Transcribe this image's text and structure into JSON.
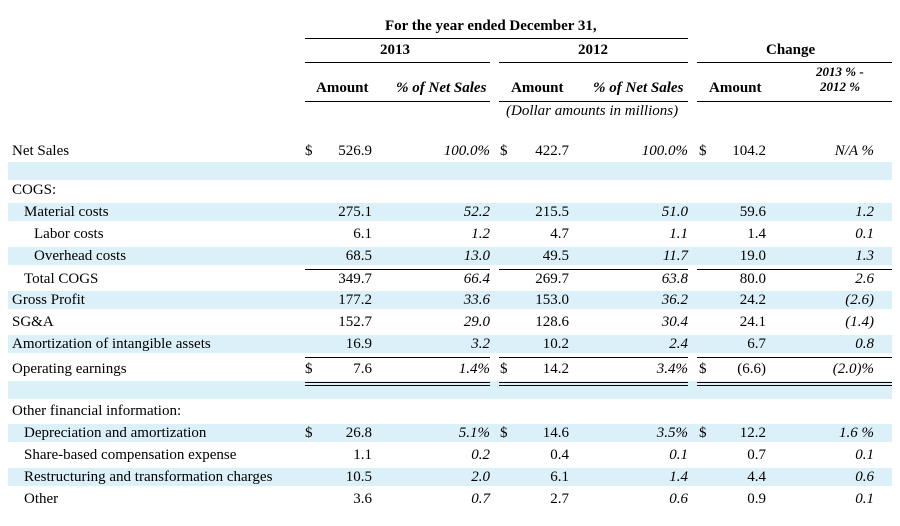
{
  "header": {
    "period_title": "For the year ended December 31,",
    "year_a": "2013",
    "year_b": "2012",
    "change": "Change",
    "amount": "Amount",
    "pct_net_sales": "% of Net Sales",
    "change_pct_line1": "2013 % -",
    "change_pct_line2": "2012 %",
    "units_note": "(Dollar amounts in millions)"
  },
  "dollar_sign": "$",
  "rows": [
    {
      "label": "Net Sales",
      "a_dollar": "$",
      "a_amt": "526.9",
      "a_pct": "100.0%",
      "b_dollar": "$",
      "b_amt": "422.7",
      "b_pct": "100.0%",
      "c_dollar": "$",
      "c_amt": "104.2",
      "c_pct": "N/A %"
    },
    {
      "label": "COGS:"
    },
    {
      "label": "Material costs",
      "a_amt": "275.1",
      "a_pct": "52.2",
      "b_amt": "215.5",
      "b_pct": "51.0",
      "c_amt": "59.6",
      "c_pct": "1.2"
    },
    {
      "label": "Labor costs",
      "a_amt": "6.1",
      "a_pct": "1.2",
      "b_amt": "4.7",
      "b_pct": "1.1",
      "c_amt": "1.4",
      "c_pct": "0.1"
    },
    {
      "label": "Overhead costs",
      "a_amt": "68.5",
      "a_pct": "13.0",
      "b_amt": "49.5",
      "b_pct": "11.7",
      "c_amt": "19.0",
      "c_pct": "1.3"
    },
    {
      "label": "Total COGS",
      "a_amt": "349.7",
      "a_pct": "66.4",
      "b_amt": "269.7",
      "b_pct": "63.8",
      "c_amt": "80.0",
      "c_pct": "2.6"
    },
    {
      "label": "Gross Profit",
      "a_amt": "177.2",
      "a_pct": "33.6",
      "b_amt": "153.0",
      "b_pct": "36.2",
      "c_amt": "24.2",
      "c_pct": "(2.6)"
    },
    {
      "label": "SG&A",
      "a_amt": "152.7",
      "a_pct": "29.0",
      "b_amt": "128.6",
      "b_pct": "30.4",
      "c_amt": "24.1",
      "c_pct": "(1.4)"
    },
    {
      "label": "Amortization of intangible assets",
      "a_amt": "16.9",
      "a_pct": "3.2",
      "b_amt": "10.2",
      "b_pct": "2.4",
      "c_amt": "6.7",
      "c_pct": "0.8"
    },
    {
      "label": "Operating earnings",
      "a_dollar": "$",
      "a_amt": "7.6",
      "a_pct": "1.4%",
      "b_dollar": "$",
      "b_amt": "14.2",
      "b_pct": "3.4%",
      "c_dollar": "$",
      "c_amt": "(6.6)",
      "c_pct": "(2.0)%"
    },
    {
      "label": "Other financial information:"
    },
    {
      "label": "Depreciation and amortization",
      "a_dollar": "$",
      "a_amt": "26.8",
      "a_pct": "5.1%",
      "b_dollar": "$",
      "b_amt": "14.6",
      "b_pct": "3.5%",
      "c_dollar": "$",
      "c_amt": "12.2",
      "c_pct": "1.6 %"
    },
    {
      "label": "Share-based compensation expense",
      "a_amt": "1.1",
      "a_pct": "0.2",
      "b_amt": "0.4",
      "b_pct": "0.1",
      "c_amt": "0.7",
      "c_pct": "0.1"
    },
    {
      "label": "Restructuring and transformation charges",
      "a_amt": "10.5",
      "a_pct": "2.0",
      "b_amt": "6.1",
      "b_pct": "1.4",
      "c_amt": "4.4",
      "c_pct": "0.6"
    },
    {
      "label": "Other",
      "a_amt": "3.6",
      "a_pct": "0.7",
      "b_amt": "2.7",
      "b_pct": "0.6",
      "c_amt": "0.9",
      "c_pct": "0.1"
    }
  ],
  "colors": {
    "band": "#dcf0fa",
    "text": "#000000"
  }
}
